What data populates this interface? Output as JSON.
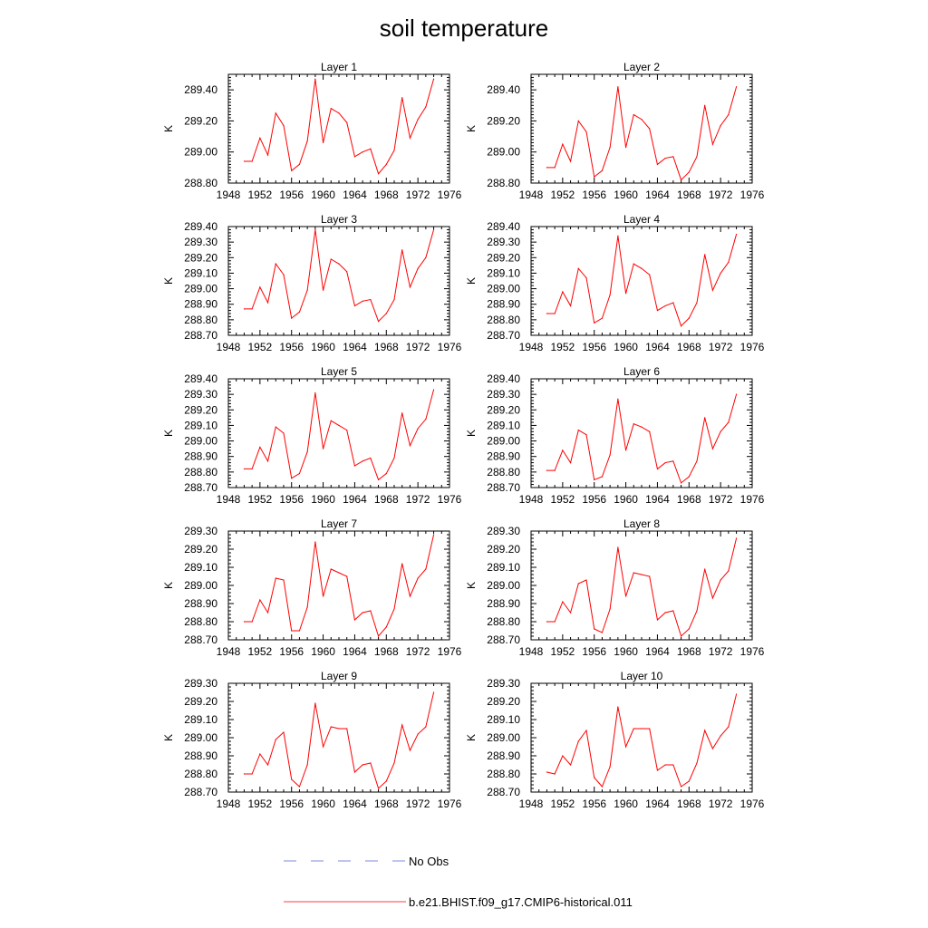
{
  "chart_data": {
    "type": "line",
    "title": "soil temperature",
    "ylabel": "K",
    "xlim": [
      1948,
      1976
    ],
    "x_ticks": [
      "1948",
      "1952",
      "1956",
      "1960",
      "1964",
      "1968",
      "1972",
      "1976"
    ],
    "x": [
      1950,
      1951,
      1952,
      1953,
      1954,
      1955,
      1956,
      1957,
      1958,
      1959,
      1960,
      1961,
      1962,
      1963,
      1964,
      1965,
      1966,
      1967,
      1968,
      1969,
      1970,
      1971,
      1972,
      1973,
      1974
    ],
    "legend": [
      {
        "label": "No Obs",
        "color": "#5566cc",
        "dash": true
      },
      {
        "label": "b.e21.BHIST.f09_g17.CMIP6-historical.011",
        "color": "#ff0000",
        "dash": false
      }
    ],
    "line_color": "#ff0000",
    "panels": [
      {
        "title": "Layer 1",
        "ylim": [
          288.8,
          289.5
        ],
        "y_ticks": [
          "288.80",
          "289.00",
          "289.20",
          "289.40"
        ],
        "values": [
          288.94,
          288.94,
          289.09,
          288.98,
          289.25,
          289.17,
          288.88,
          288.92,
          289.07,
          289.47,
          289.06,
          289.28,
          289.25,
          289.19,
          288.97,
          289.0,
          289.02,
          288.86,
          288.92,
          289.01,
          289.35,
          289.09,
          289.21,
          289.29,
          289.47
        ]
      },
      {
        "title": "Layer 2",
        "ylim": [
          288.8,
          289.5
        ],
        "y_ticks": [
          "288.80",
          "289.00",
          "289.20",
          "289.40"
        ],
        "values": [
          288.9,
          288.9,
          289.05,
          288.94,
          289.2,
          289.13,
          288.84,
          288.88,
          289.03,
          289.42,
          289.03,
          289.24,
          289.21,
          289.15,
          288.92,
          288.96,
          288.97,
          288.82,
          288.87,
          288.97,
          289.3,
          289.05,
          289.17,
          289.24,
          289.42
        ]
      },
      {
        "title": "Layer 3",
        "ylim": [
          288.7,
          289.4
        ],
        "y_ticks": [
          "288.70",
          "288.80",
          "288.90",
          "289.00",
          "289.10",
          "289.20",
          "289.30",
          "289.40"
        ],
        "values": [
          288.87,
          288.87,
          289.01,
          288.91,
          289.16,
          289.09,
          288.81,
          288.85,
          288.99,
          289.38,
          288.99,
          289.19,
          289.16,
          289.11,
          288.89,
          288.92,
          288.93,
          288.79,
          288.84,
          288.93,
          289.25,
          289.01,
          289.13,
          289.2,
          289.38
        ]
      },
      {
        "title": "Layer 4",
        "ylim": [
          288.7,
          289.4
        ],
        "y_ticks": [
          "288.70",
          "288.80",
          "288.90",
          "289.00",
          "289.10",
          "289.20",
          "289.30",
          "289.40"
        ],
        "values": [
          288.84,
          288.84,
          288.98,
          288.89,
          289.13,
          289.07,
          288.78,
          288.81,
          288.96,
          289.34,
          288.97,
          289.16,
          289.13,
          289.09,
          288.86,
          288.89,
          288.91,
          288.76,
          288.81,
          288.91,
          289.22,
          288.99,
          289.1,
          289.17,
          289.35
        ]
      },
      {
        "title": "Layer 5",
        "ylim": [
          288.7,
          289.4
        ],
        "y_ticks": [
          "288.70",
          "288.80",
          "288.90",
          "289.00",
          "289.10",
          "289.20",
          "289.30",
          "289.40"
        ],
        "values": [
          288.82,
          288.82,
          288.96,
          288.87,
          289.09,
          289.05,
          288.76,
          288.79,
          288.93,
          289.31,
          288.95,
          289.13,
          289.1,
          289.07,
          288.84,
          288.87,
          288.89,
          288.75,
          288.79,
          288.89,
          289.18,
          288.97,
          289.08,
          289.14,
          289.33
        ]
      },
      {
        "title": "Layer 6",
        "ylim": [
          288.7,
          289.4
        ],
        "y_ticks": [
          "288.70",
          "288.80",
          "288.90",
          "289.00",
          "289.10",
          "289.20",
          "289.30",
          "289.40"
        ],
        "values": [
          288.81,
          288.81,
          288.94,
          288.86,
          289.07,
          289.04,
          288.75,
          288.77,
          288.91,
          289.27,
          288.94,
          289.11,
          289.09,
          289.06,
          288.82,
          288.86,
          288.87,
          288.73,
          288.77,
          288.87,
          289.15,
          288.95,
          289.06,
          289.12,
          289.3
        ]
      },
      {
        "title": "Layer 7",
        "ylim": [
          288.7,
          289.3
        ],
        "y_ticks": [
          "288.70",
          "288.80",
          "288.90",
          "289.00",
          "289.10",
          "289.20",
          "289.30"
        ],
        "values": [
          288.8,
          288.8,
          288.92,
          288.85,
          289.04,
          289.03,
          288.75,
          288.75,
          288.88,
          289.24,
          288.94,
          289.09,
          289.07,
          289.05,
          288.81,
          288.85,
          288.86,
          288.72,
          288.77,
          288.87,
          289.12,
          288.94,
          289.04,
          289.09,
          289.28
        ]
      },
      {
        "title": "Layer 8",
        "ylim": [
          288.7,
          289.3
        ],
        "y_ticks": [
          "288.70",
          "288.80",
          "288.90",
          "289.00",
          "289.10",
          "289.20",
          "289.30"
        ],
        "values": [
          288.8,
          288.8,
          288.91,
          288.85,
          289.01,
          289.03,
          288.76,
          288.74,
          288.87,
          289.21,
          288.94,
          289.07,
          289.06,
          289.05,
          288.81,
          288.85,
          288.86,
          288.72,
          288.76,
          288.86,
          289.09,
          288.93,
          289.03,
          289.08,
          289.26
        ]
      },
      {
        "title": "Layer 9",
        "ylim": [
          288.7,
          289.3
        ],
        "y_ticks": [
          "288.70",
          "288.80",
          "288.90",
          "289.00",
          "289.10",
          "289.20",
          "289.30"
        ],
        "values": [
          288.8,
          288.8,
          288.91,
          288.85,
          288.99,
          289.03,
          288.77,
          288.73,
          288.85,
          289.19,
          288.95,
          289.06,
          289.05,
          289.05,
          288.81,
          288.85,
          288.86,
          288.72,
          288.76,
          288.86,
          289.07,
          288.93,
          289.02,
          289.06,
          289.25
        ]
      },
      {
        "title": "Layer 10",
        "ylim": [
          288.7,
          289.3
        ],
        "y_ticks": [
          "288.70",
          "288.80",
          "288.90",
          "289.00",
          "289.10",
          "289.20",
          "289.30"
        ],
        "values": [
          288.81,
          288.8,
          288.9,
          288.85,
          288.98,
          289.04,
          288.78,
          288.73,
          288.84,
          289.17,
          288.95,
          289.05,
          289.05,
          289.05,
          288.82,
          288.85,
          288.85,
          288.73,
          288.76,
          288.86,
          289.04,
          288.94,
          289.01,
          289.06,
          289.24
        ]
      }
    ]
  }
}
